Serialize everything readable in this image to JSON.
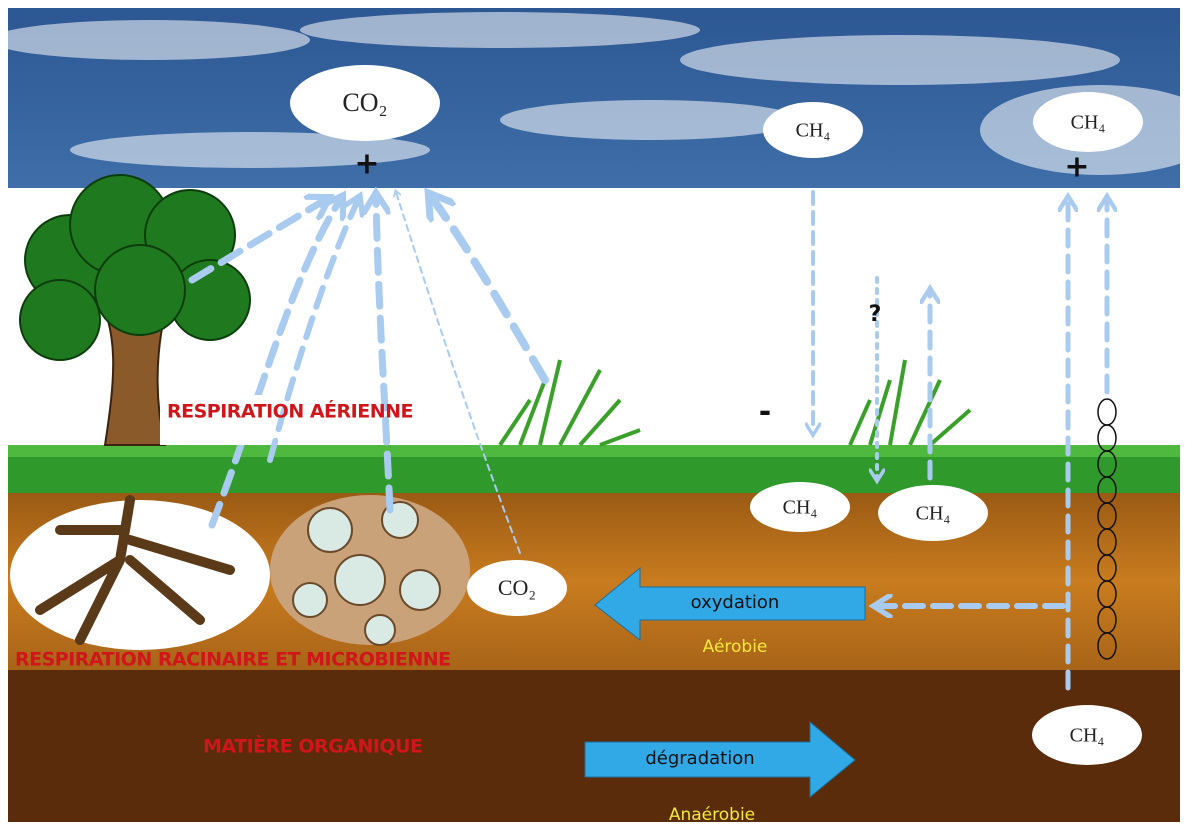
{
  "gases": [
    "CO₂",
    "CH₄",
    "CH₄",
    "CH₄",
    "CH₄",
    "CO₂",
    "CH₄"
  ],
  "signs": [
    "+",
    "+",
    "-",
    "?"
  ],
  "labels": {
    "aerial_respiration": "RESPIRATION AÉRIENNE",
    "root_microbial_respiration": "RESPIRATION RACINAIRE ET MICROBIENNE",
    "organic_matter": "MATIÈRE ORGANIQUE"
  },
  "processes": [
    {
      "name": "oxydation",
      "condition": "Aérobie"
    },
    {
      "name": "dégradation",
      "condition": "Anaérobie"
    }
  ]
}
